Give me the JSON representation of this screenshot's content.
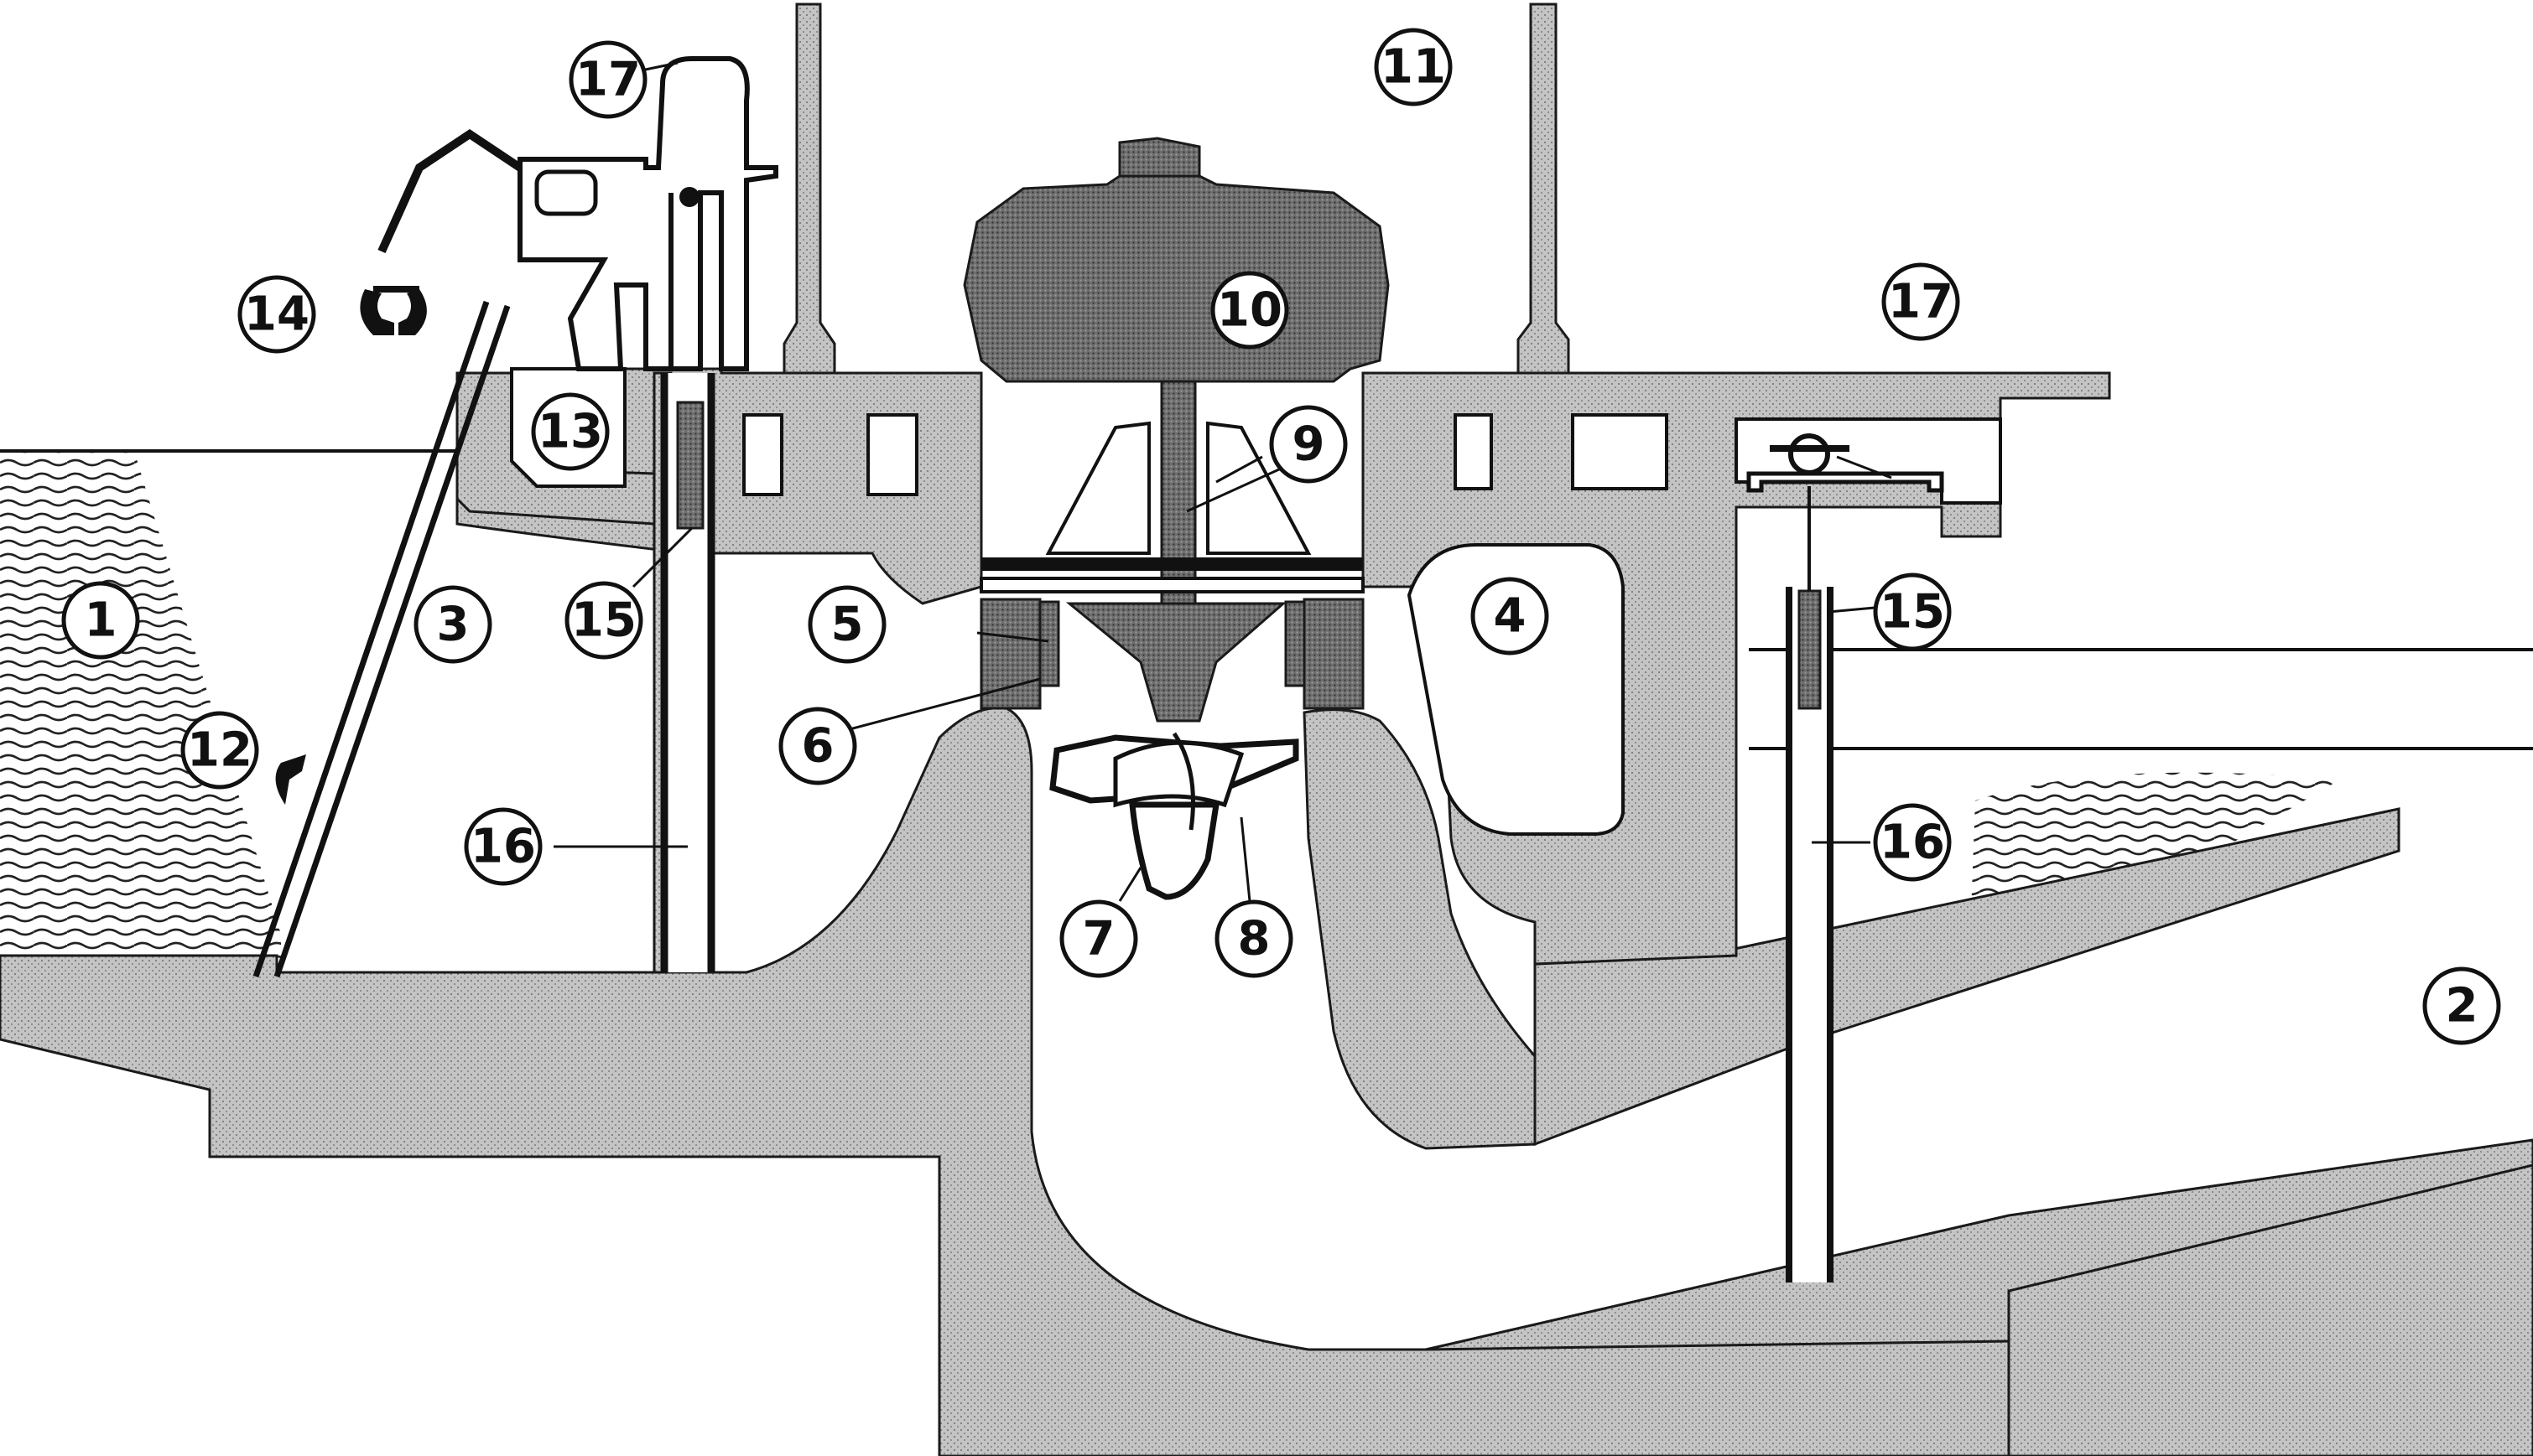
{
  "colors": {
    "concrete": "#c4c4c4",
    "concrete_dark": "#6e6e6e",
    "ink": "#111111",
    "water_wave": "#222222",
    "background": "#ffffff"
  },
  "callouts": [
    {
      "id": "c1",
      "label": "1"
    },
    {
      "id": "c2",
      "label": "2"
    },
    {
      "id": "c3",
      "label": "3"
    },
    {
      "id": "c4",
      "label": "4"
    },
    {
      "id": "c5",
      "label": "5"
    },
    {
      "id": "c6",
      "label": "6"
    },
    {
      "id": "c7",
      "label": "7"
    },
    {
      "id": "c8",
      "label": "8"
    },
    {
      "id": "c9",
      "label": "9"
    },
    {
      "id": "c10",
      "label": "10"
    },
    {
      "id": "c11",
      "label": "11"
    },
    {
      "id": "c12",
      "label": "12"
    },
    {
      "id": "c13",
      "label": "13"
    },
    {
      "id": "c14",
      "label": "14"
    },
    {
      "id": "c15a",
      "label": "15"
    },
    {
      "id": "c15b",
      "label": "15"
    },
    {
      "id": "c16a",
      "label": "16"
    },
    {
      "id": "c16b",
      "label": "16"
    },
    {
      "id": "c17a",
      "label": "17"
    },
    {
      "id": "c17b",
      "label": "17"
    }
  ]
}
